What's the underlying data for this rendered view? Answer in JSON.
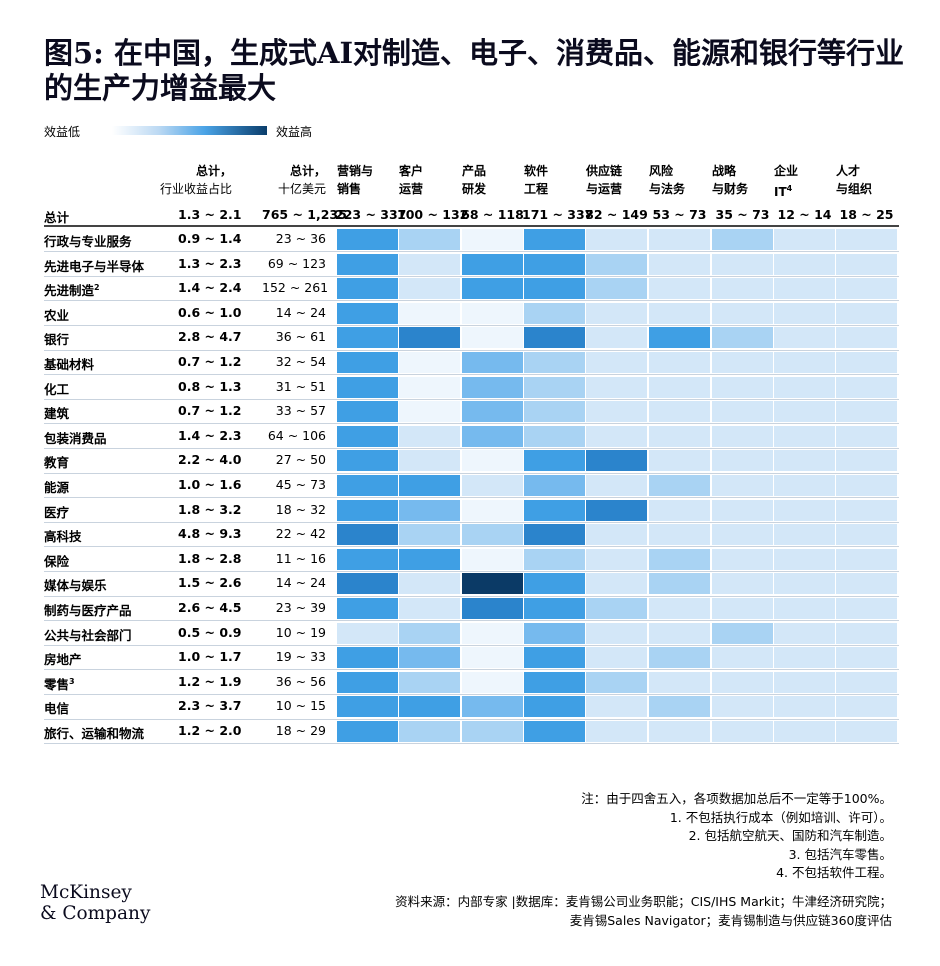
{
  "title": "图5: 在中国，生成式AI对制造、电子、消费品、能源和银行等行业的生产力增益最大",
  "legend": {
    "low": "效益低",
    "high": "效益高"
  },
  "chart_data": {
    "type": "heatmap",
    "title": "图5: 在中国，生成式AI对制造、电子、消费品、能源和银行等行业的生产力增益最大",
    "summary_headers": [
      {
        "line1": "总计，",
        "line2": "行业收益占比"
      },
      {
        "line1": "总计，",
        "line2": "十亿美元"
      }
    ],
    "columns": [
      {
        "line1": "营销与",
        "line2": "销售"
      },
      {
        "line1": "客户",
        "line2": "运营"
      },
      {
        "line1": "产品",
        "line2": "研发"
      },
      {
        "line1": "软件",
        "line2": "工程"
      },
      {
        "line1": "供应链",
        "line2": "与运营"
      },
      {
        "line1": "风险",
        "line2": "与法务"
      },
      {
        "line1": "战略",
        "line2": "与财务"
      },
      {
        "line1": "企业",
        "line2": "IT",
        "sup": "4"
      },
      {
        "line1": "人才",
        "line2": "与组织"
      }
    ],
    "total_row": {
      "label": "总计",
      "share": "1.3 ~ 2.1",
      "value": "765 ~ 1,235",
      "column_values": [
        "223 ~ 337",
        "100 ~ 132",
        "68 ~ 118",
        "171 ~ 337",
        "82 ~ 149",
        "53 ~ 73",
        "35 ~ 73",
        "12 ~ 14",
        "18 ~ 25"
      ]
    },
    "rows": [
      {
        "label": "行政与专业服务",
        "sup": "",
        "share": "0.9 ~ 1.4",
        "value": "23 ~ 36",
        "levels": [
          4,
          2,
          0,
          4,
          1,
          1,
          2,
          1,
          1
        ]
      },
      {
        "label": "先进电子与半导体",
        "sup": "",
        "share": "1.3 ~ 2.3",
        "value": "69 ~ 123",
        "levels": [
          4,
          1,
          4,
          4,
          2,
          1,
          1,
          1,
          1
        ]
      },
      {
        "label": "先进制造",
        "sup": "2",
        "share": "1.4 ~ 2.4",
        "value": "152 ~ 261",
        "levels": [
          4,
          1,
          4,
          4,
          2,
          1,
          1,
          1,
          1
        ]
      },
      {
        "label": "农业",
        "sup": "",
        "share": "0.6 ~ 1.0",
        "value": "14 ~ 24",
        "levels": [
          4,
          0,
          0,
          2,
          1,
          1,
          1,
          1,
          1
        ]
      },
      {
        "label": "银行",
        "sup": "",
        "share": "2.8 ~ 4.7",
        "value": "36 ~ 61",
        "levels": [
          4,
          5,
          0,
          5,
          1,
          4,
          2,
          1,
          1
        ]
      },
      {
        "label": "基础材料",
        "sup": "",
        "share": "0.7 ~ 1.2",
        "value": "32 ~ 54",
        "levels": [
          4,
          0,
          3,
          2,
          1,
          1,
          1,
          1,
          1
        ]
      },
      {
        "label": "化工",
        "sup": "",
        "share": "0.8 ~ 1.3",
        "value": "31 ~ 51",
        "levels": [
          4,
          0,
          3,
          2,
          1,
          1,
          1,
          1,
          1
        ]
      },
      {
        "label": "建筑",
        "sup": "",
        "share": "0.7 ~ 1.2",
        "value": "33 ~ 57",
        "levels": [
          4,
          0,
          3,
          2,
          1,
          1,
          1,
          1,
          1
        ]
      },
      {
        "label": "包装消费品",
        "sup": "",
        "share": "1.4 ~ 2.3",
        "value": "64 ~ 106",
        "levels": [
          4,
          1,
          3,
          2,
          1,
          1,
          1,
          1,
          1
        ]
      },
      {
        "label": "教育",
        "sup": "",
        "share": "2.2 ~ 4.0",
        "value": "27 ~ 50",
        "levels": [
          4,
          1,
          0,
          4,
          5,
          1,
          1,
          1,
          1
        ]
      },
      {
        "label": "能源",
        "sup": "",
        "share": "1.0 ~ 1.6",
        "value": "45 ~ 73",
        "levels": [
          4,
          4,
          1,
          3,
          1,
          2,
          1,
          1,
          1
        ]
      },
      {
        "label": "医疗",
        "sup": "",
        "share": "1.8 ~ 3.2",
        "value": "18 ~ 32",
        "levels": [
          4,
          3,
          0,
          4,
          5,
          1,
          1,
          1,
          1
        ]
      },
      {
        "label": "高科技",
        "sup": "",
        "share": "4.8 ~ 9.3",
        "value": "22 ~ 42",
        "levels": [
          5,
          2,
          2,
          5,
          1,
          1,
          1,
          1,
          1
        ]
      },
      {
        "label": "保险",
        "sup": "",
        "share": "1.8 ~ 2.8",
        "value": "11 ~ 16",
        "levels": [
          4,
          4,
          0,
          2,
          1,
          2,
          1,
          1,
          1
        ]
      },
      {
        "label": "媒体与娱乐",
        "sup": "",
        "share": "1.5 ~ 2.6",
        "value": "14 ~ 24",
        "levels": [
          5,
          1,
          7,
          4,
          1,
          2,
          1,
          1,
          1
        ]
      },
      {
        "label": "制药与医疗产品",
        "sup": "",
        "share": "2.6 ~ 4.5",
        "value": "23 ~ 39",
        "levels": [
          4,
          1,
          5,
          4,
          2,
          1,
          1,
          1,
          1
        ]
      },
      {
        "label": "公共与社会部门",
        "sup": "",
        "share": "0.5 ~ 0.9",
        "value": "10 ~ 19",
        "levels": [
          1,
          2,
          0,
          3,
          1,
          1,
          2,
          1,
          1
        ]
      },
      {
        "label": "房地产",
        "sup": "",
        "share": "1.0 ~ 1.7",
        "value": "19 ~ 33",
        "levels": [
          4,
          3,
          0,
          4,
          1,
          2,
          1,
          1,
          1
        ]
      },
      {
        "label": "零售",
        "sup": "3",
        "share": "1.2 ~ 1.9",
        "value": "36 ~ 56",
        "levels": [
          4,
          2,
          0,
          4,
          2,
          1,
          1,
          1,
          1
        ]
      },
      {
        "label": "电信",
        "sup": "",
        "share": "2.3 ~ 3.7",
        "value": "10 ~ 15",
        "levels": [
          4,
          4,
          3,
          4,
          1,
          2,
          1,
          1,
          1
        ]
      },
      {
        "label": "旅行、运输和物流",
        "sup": "",
        "share": "1.2 ~ 2.0",
        "value": "18 ~ 29",
        "levels": [
          4,
          2,
          2,
          4,
          1,
          1,
          1,
          1,
          1
        ]
      }
    ],
    "palette": [
      "#eef6fd",
      "#d3e7f8",
      "#a9d3f3",
      "#76baee",
      "#3f9fe4",
      "#2b84cc",
      "#1f6db0",
      "#0b3a66"
    ]
  },
  "notes": [
    "注：由于四舍五入，各项数据加总后不一定等于100%。",
    "1. 不包括执行成本（例如培训、许可）。",
    "2. 包括航空航天、国防和汽车制造。",
    "3. 包括汽车零售。",
    "4. 不包括软件工程。"
  ],
  "logo": {
    "line1": "McKinsey",
    "line2": "& Company"
  },
  "source": [
    "资料来源：内部专家 |数据库：麦肯锡公司业务职能；CIS/IHS Markit；牛津经济研究院；",
    "麦肯锡Sales Navigator；麦肯锡制造与供应链360度评估"
  ]
}
